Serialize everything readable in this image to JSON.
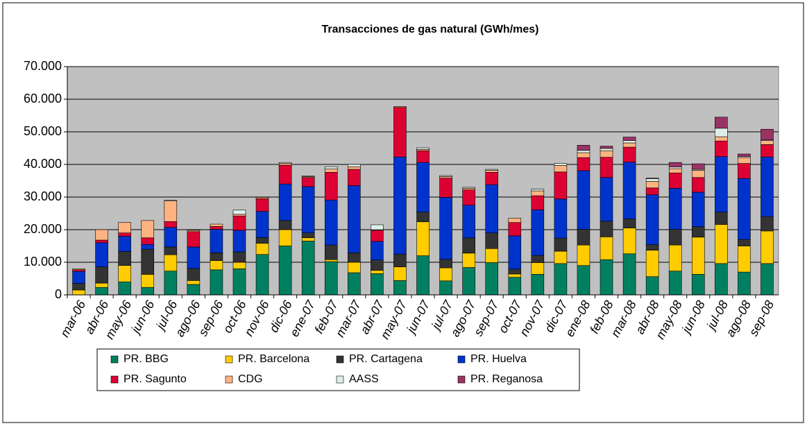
{
  "chart_data": {
    "type": "bar",
    "stacked": true,
    "title": "Transacciones de gas natural (GWh/mes)",
    "categories": [
      "mar-06",
      "abr-06",
      "may-06",
      "jun-06",
      "jul-06",
      "ago-06",
      "sep-06",
      "oct-06",
      "nov-06",
      "dic-06",
      "ene-07",
      "feb-07",
      "mar-07",
      "abr-07",
      "may-07",
      "jun-07",
      "jul-07",
      "ago-07",
      "sep-07",
      "oct-07",
      "nov-07",
      "dic-07",
      "ene-08",
      "feb-08",
      "mar-08",
      "abr-08",
      "may-08",
      "jun-08",
      "jul-08",
      "ago-08",
      "sep-08"
    ],
    "series": [
      {
        "name": "PR. BBG",
        "color": "#008060",
        "values": [
          0,
          2300,
          4000,
          2300,
          7300,
          3200,
          7700,
          8000,
          12400,
          15000,
          16500,
          10200,
          6800,
          6500,
          4400,
          12000,
          4300,
          8400,
          9900,
          5400,
          6300,
          9600,
          9000,
          10800,
          12600,
          5600,
          7300,
          6300,
          9600,
          7000,
          9600
        ]
      },
      {
        "name": "PR. Barcelona",
        "color": "#ffcc00",
        "values": [
          1500,
          1300,
          5000,
          4000,
          5000,
          1200,
          2800,
          2000,
          3400,
          5000,
          1000,
          600,
          3200,
          1000,
          4200,
          10400,
          4000,
          4400,
          4300,
          1000,
          3600,
          3800,
          6300,
          7000,
          7900,
          8100,
          8000,
          11400,
          12000,
          8000,
          10000
        ]
      },
      {
        "name": "PR. Cartagena",
        "color": "#333333",
        "values": [
          2000,
          5000,
          4300,
          7700,
          2400,
          3700,
          2400,
          3200,
          1800,
          2800,
          1500,
          4500,
          2900,
          3200,
          3900,
          3000,
          2600,
          4700,
          4800,
          1500,
          2200,
          4000,
          4800,
          4800,
          2800,
          1700,
          4800,
          3200,
          3800,
          2000,
          4400
        ]
      },
      {
        "name": "PR. Huelva",
        "color": "#0033cc",
        "values": [
          3700,
          7400,
          4700,
          1500,
          6000,
          6600,
          7200,
          6600,
          8000,
          11200,
          14200,
          13800,
          20600,
          5700,
          29800,
          15200,
          19000,
          10000,
          14800,
          10200,
          14000,
          12000,
          18000,
          13400,
          17400,
          15300,
          12600,
          10600,
          17000,
          18700,
          18300
        ]
      },
      {
        "name": "PR. Sagunto",
        "color": "#dd0033",
        "values": [
          500,
          800,
          1000,
          2000,
          1800,
          4700,
          900,
          4400,
          3900,
          5800,
          2800,
          8500,
          5000,
          3400,
          15200,
          3600,
          5900,
          4700,
          3800,
          4100,
          4300,
          8300,
          4000,
          6200,
          4600,
          2100,
          4700,
          4500,
          4800,
          4600,
          3800
        ]
      },
      {
        "name": "CDG",
        "color": "#ffb380",
        "values": [
          300,
          3200,
          3200,
          5300,
          6300,
          400,
          700,
          500,
          400,
          500,
          300,
          1000,
          800,
          200,
          300,
          400,
          500,
          500,
          600,
          1300,
          1500,
          2000,
          1500,
          2000,
          1300,
          2000,
          1300,
          2200,
          1300,
          1800,
          1200
        ]
      },
      {
        "name": "AASS",
        "color": "#ddf0e8",
        "values": [
          0,
          0,
          0,
          0,
          200,
          0,
          0,
          1300,
          0,
          300,
          200,
          700,
          700,
          1500,
          0,
          500,
          300,
          300,
          300,
          0,
          500,
          600,
          700,
          700,
          700,
          800,
          500,
          300,
          2600,
          300,
          200
        ]
      },
      {
        "name": "PR. Reganosa",
        "color": "#993366",
        "values": [
          0,
          0,
          0,
          0,
          0,
          0,
          0,
          0,
          0,
          0,
          0,
          0,
          0,
          0,
          0,
          0,
          0,
          0,
          0,
          0,
          0,
          0,
          1600,
          700,
          1100,
          200,
          1400,
          1700,
          3400,
          800,
          3300
        ]
      }
    ],
    "ylim": [
      0,
      70000
    ],
    "yticks": [
      0,
      {
        "value": 10000,
        "label": "10.000"
      },
      {
        "value": 20000,
        "label": "20.000"
      },
      {
        "value": 30000,
        "label": "30.000"
      },
      {
        "value": 40000,
        "label": "40.000"
      },
      {
        "value": 50000,
        "label": "50.000"
      },
      {
        "value": 60000,
        "label": "60.000"
      },
      {
        "value": 70000,
        "label": "70.000"
      }
    ],
    "grid": true,
    "legend": "bottom"
  }
}
